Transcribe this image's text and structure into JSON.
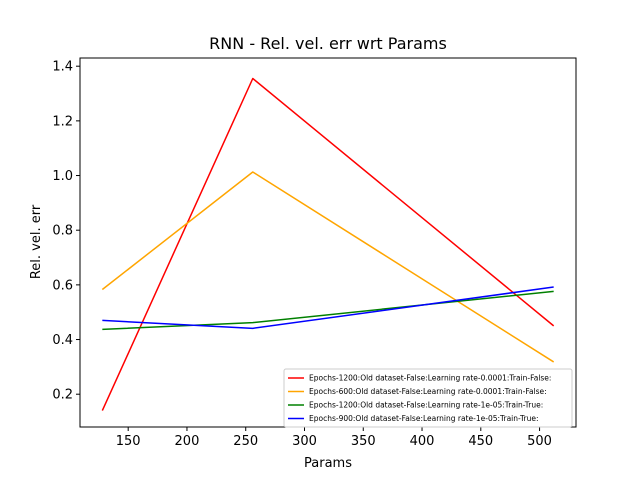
{
  "chart_data": {
    "type": "line",
    "title": "RNN - Rel. vel. err wrt Params",
    "xlabel": "Params",
    "ylabel": "Rel. vel. err",
    "xlim": [
      109,
      531
    ],
    "ylim": [
      0.08,
      1.43
    ],
    "xticks": [
      150,
      200,
      250,
      300,
      350,
      400,
      450,
      500
    ],
    "yticks": [
      0.2,
      0.4,
      0.6,
      0.8,
      1.0,
      1.2,
      1.4
    ],
    "grid": false,
    "legend_position": "lower-right",
    "x": [
      128,
      256,
      512
    ],
    "series": [
      {
        "name": "Epochs-1200:Old dataset-False:Learning rate-0.0001:Train-False:",
        "color": "#ff0000",
        "values": [
          0.14,
          1.355,
          0.45
        ]
      },
      {
        "name": "Epochs-600:Old dataset-False:Learning rate-0.0001:Train-False:",
        "color": "#ffa500",
        "values": [
          0.583,
          1.013,
          0.318
        ]
      },
      {
        "name": "Epochs-1200:Old dataset-False:Learning rate-1e-05:Train-True:",
        "color": "#008000",
        "values": [
          0.437,
          0.462,
          0.576
        ]
      },
      {
        "name": "Epochs-900:Old dataset-False:Learning rate-1e-05:Train-True:",
        "color": "#0000ff",
        "values": [
          0.47,
          0.441,
          0.592
        ]
      }
    ]
  }
}
